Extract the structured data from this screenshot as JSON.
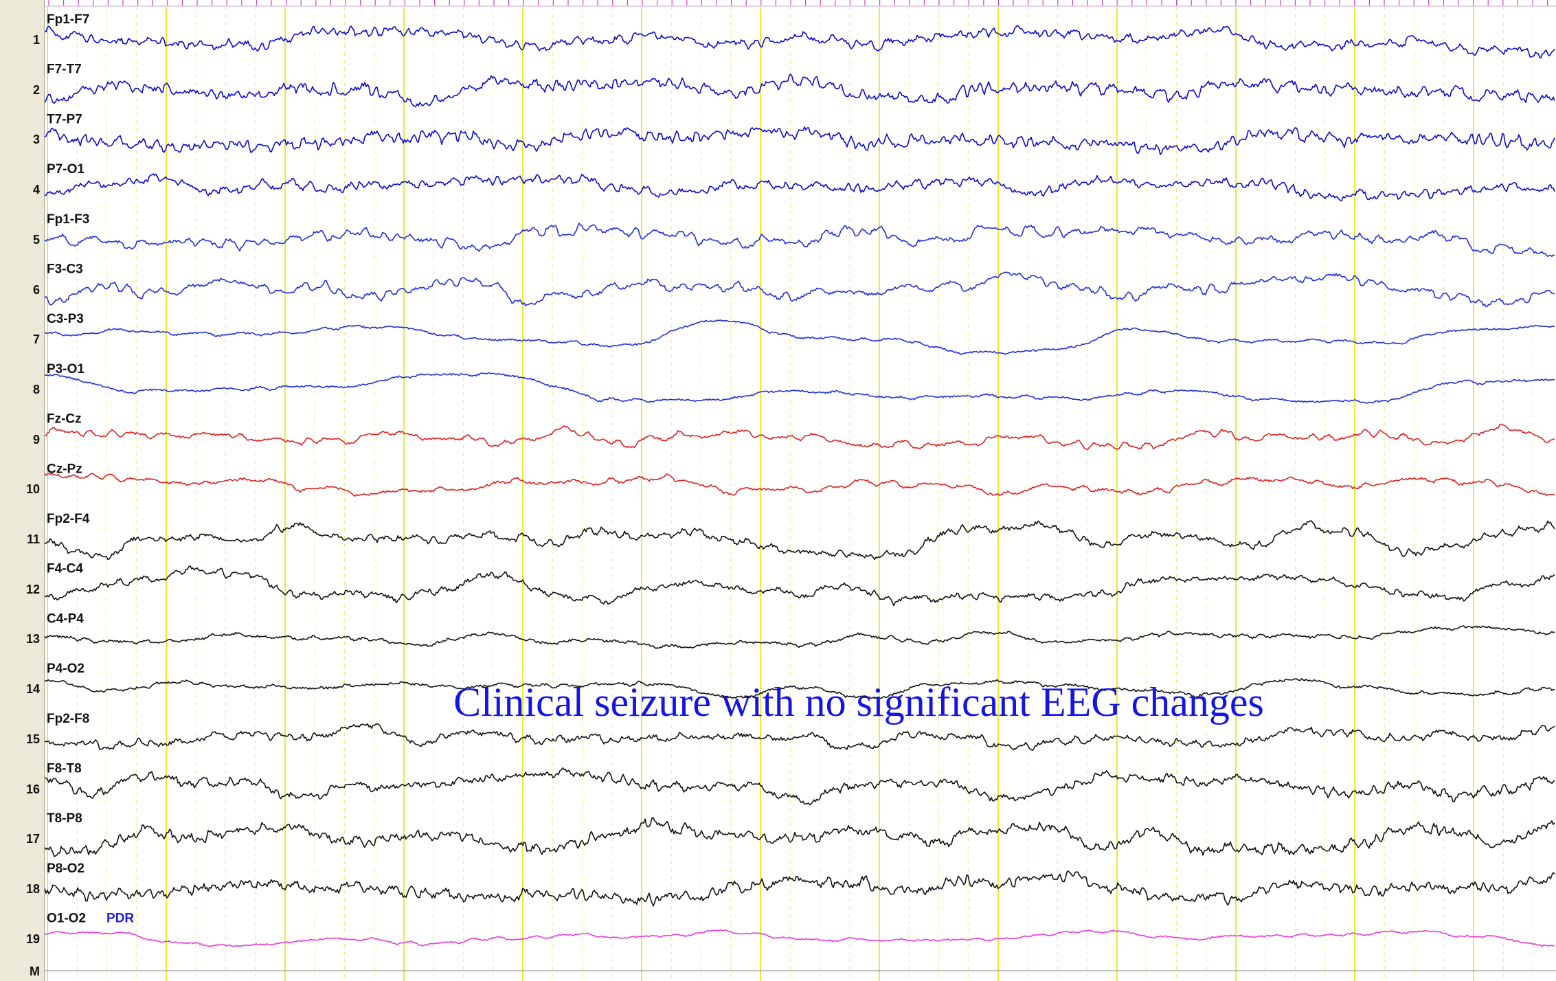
{
  "channels": [
    {
      "num": "1",
      "label": "Fp1-F7",
      "color": "#0a0ad2"
    },
    {
      "num": "2",
      "label": "F7-T7",
      "color": "#0a0ad2"
    },
    {
      "num": "3",
      "label": "T7-P7",
      "color": "#0a0ad2"
    },
    {
      "num": "4",
      "label": "P7-O1",
      "color": "#0a0ad2"
    },
    {
      "num": "5",
      "label": "Fp1-F3",
      "color": "#1f2ee0"
    },
    {
      "num": "6",
      "label": "F3-C3",
      "color": "#1f2ee0"
    },
    {
      "num": "7",
      "label": "C3-P3",
      "color": "#1f2ee0"
    },
    {
      "num": "8",
      "label": "P3-O1",
      "color": "#1f2ee0"
    },
    {
      "num": "9",
      "label": "Fz-Cz",
      "color": "#e02020"
    },
    {
      "num": "10",
      "label": "Cz-Pz",
      "color": "#e02020"
    },
    {
      "num": "11",
      "label": "Fp2-F4",
      "color": "#111111"
    },
    {
      "num": "12",
      "label": "F4-C4",
      "color": "#111111"
    },
    {
      "num": "13",
      "label": "C4-P4",
      "color": "#111111"
    },
    {
      "num": "14",
      "label": "P4-O2",
      "color": "#111111"
    },
    {
      "num": "15",
      "label": "Fp2-F8",
      "color": "#111111"
    },
    {
      "num": "16",
      "label": "F8-T8",
      "color": "#111111"
    },
    {
      "num": "17",
      "label": "T8-P8",
      "color": "#111111"
    },
    {
      "num": "18",
      "label": "P8-O2",
      "color": "#111111"
    },
    {
      "num": "19",
      "label": "O1-O2",
      "color": "#e83ad8"
    }
  ],
  "marker_row_label": "M",
  "pdr_label": "PDR",
  "annotation": {
    "text": "Clinical seizure with no significant EEG changes",
    "color": "#1414e6"
  },
  "colors": {
    "left_chain": "#0a0ad2",
    "parasagittal_left": "#1f2ee0",
    "midline": "#e02020",
    "right_chain": "#111111",
    "o1_o2": "#e83ad8",
    "second_grid": "#e6e600",
    "sub_grid": "#ecec7a",
    "top_ruler_ticks": "#c840c8"
  }
}
